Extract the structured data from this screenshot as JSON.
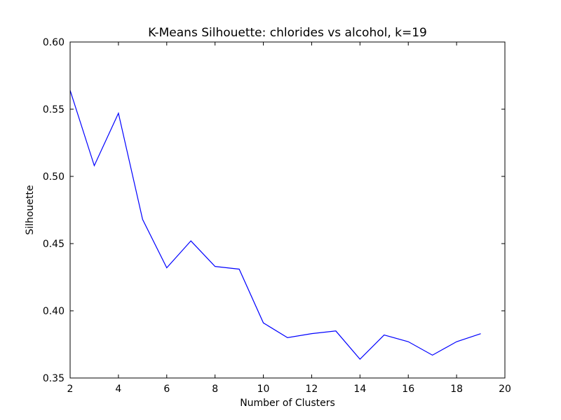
{
  "chart_data": {
    "type": "line",
    "title": "K-Means Silhouette: chlorides vs alcohol, k=19",
    "xlabel": "Number of Clusters",
    "ylabel": "Silhouette",
    "xlim": [
      2,
      20
    ],
    "ylim": [
      0.35,
      0.6
    ],
    "xticks": [
      2,
      4,
      6,
      8,
      10,
      12,
      14,
      16,
      18,
      20
    ],
    "yticks": [
      0.35,
      0.4,
      0.45,
      0.5,
      0.55,
      0.6
    ],
    "ytick_labels": [
      "0.35",
      "0.40",
      "0.45",
      "0.50",
      "0.55",
      "0.60"
    ],
    "grid": false,
    "series": [
      {
        "color": "#0000ff",
        "x": [
          2,
          3,
          4,
          5,
          6,
          7,
          8,
          9,
          10,
          11,
          12,
          13,
          14,
          15,
          16,
          17,
          18,
          19
        ],
        "y": [
          0.564,
          0.508,
          0.547,
          0.468,
          0.432,
          0.452,
          0.433,
          0.431,
          0.391,
          0.38,
          0.383,
          0.385,
          0.364,
          0.382,
          0.377,
          0.367,
          0.377,
          0.383
        ]
      }
    ]
  }
}
